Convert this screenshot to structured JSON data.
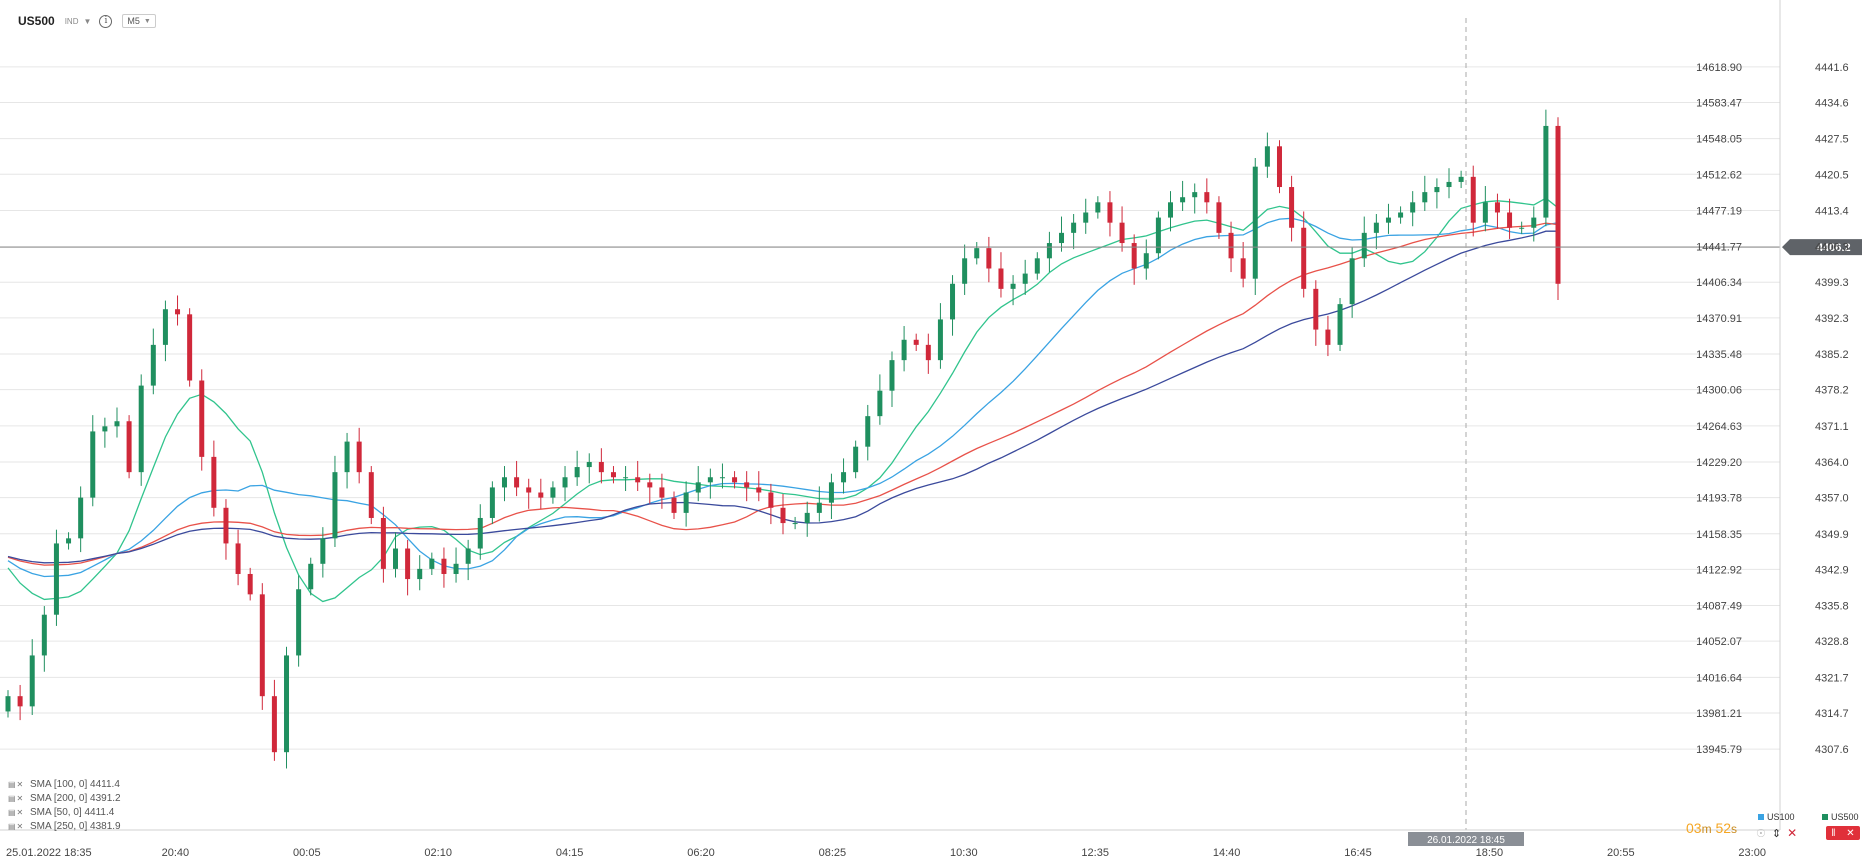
{
  "header": {
    "symbol": "US500",
    "type": "IND",
    "timeframe": "M5"
  },
  "legend": [
    {
      "label": "SMA [100, 0] 4411.4"
    },
    {
      "label": "SMA [200, 0] 4391.2"
    },
    {
      "label": "SMA [50, 0] 4411.4"
    },
    {
      "label": "SMA [250, 0] 4381.9"
    }
  ],
  "timer": {
    "minutes": "03",
    "m": "m",
    "seconds": "52",
    "s": "s"
  },
  "instruments": {
    "first": "US100",
    "second": "US500"
  },
  "crosshair": {
    "label": "26.01.2022 18:45"
  },
  "colors": {
    "bull": "#1f8f5f",
    "bear": "#d0283a",
    "sma50": "#31c48d",
    "sma100": "#3aa3e3",
    "sma200": "#e8524a",
    "sma250": "#3b4a9c",
    "grid": "#e6e6e6",
    "price_line": "#8a8a8a",
    "timer": "#f5a623"
  },
  "chart_data": {
    "type": "candlestick",
    "title": "US500",
    "timeframe": "M5",
    "x": {
      "tick_labels": [
        "25.01.2022  18:35",
        "20:40",
        "00:05",
        "02:10",
        "04:15",
        "06:20",
        "08:25",
        "10:30",
        "12:35",
        "14:40",
        "16:45",
        "18:50",
        "20:55",
        "23:00"
      ]
    },
    "y_right": {
      "ticks": [
        "4441.6",
        "4434.6",
        "4427.5",
        "4420.5",
        "4413.4",
        "4406.3",
        "4399.3",
        "4392.3",
        "4385.2",
        "4378.2",
        "4371.1",
        "4364.0",
        "4357.0",
        "4349.9",
        "4342.9",
        "4335.8",
        "4328.8",
        "4321.7",
        "4314.7",
        "4307.6"
      ],
      "range": [
        4303.5,
        4445.7
      ]
    },
    "y_left": {
      "ticks": [
        "14618.90",
        "14583.47",
        "14548.05",
        "14512.62",
        "14477.19",
        "14441.77",
        "14406.34",
        "14370.91",
        "14335.48",
        "14300.06",
        "14264.63",
        "14229.20",
        "14193.78",
        "14158.35",
        "14122.92",
        "14087.49",
        "14052.07",
        "14016.64",
        "13981.21",
        "13945.79"
      ]
    },
    "current_price": {
      "value": 4406.2,
      "label": "4406.2"
    },
    "close_path": [
      4318.0,
      4316.0,
      4326.0,
      4334.0,
      4348.0,
      4349.0,
      4357.0,
      4370.0,
      4371.0,
      4372.0,
      4362.0,
      4379.0,
      4387.0,
      4394.0,
      4393.0,
      4380.0,
      4365.0,
      4355.0,
      4348.0,
      4342.0,
      4338.0,
      4318.0,
      4307.0,
      4326.0,
      4339.0,
      4344.0,
      4349.0,
      4362.0,
      4368.0,
      4362.0,
      4353.0,
      4343.0,
      4347.0,
      4341.0,
      4343.0,
      4345.0,
      4342.0,
      4344.0,
      4347.0,
      4353.0,
      4359.0,
      4361.0,
      4359.0,
      4358.0,
      4357.0,
      4359.0,
      4361.0,
      4363.0,
      4364.0,
      4362.0,
      4361.0,
      4361.0,
      4360.0,
      4359.0,
      4357.0,
      4354.0,
      4358.0,
      4360.0,
      4361.0,
      4361.0,
      4360.0,
      4359.0,
      4358.0,
      4355.0,
      4352.0,
      4352.0,
      4354.0,
      4356.0,
      4360.0,
      4362.0,
      4367.0,
      4373.0,
      4378.0,
      4384.0,
      4388.0,
      4387.0,
      4384.0,
      4392.0,
      4399.0,
      4404.0,
      4406.0,
      4402.0,
      4398.0,
      4399.0,
      4401.0,
      4404.0,
      4407.0,
      4409.0,
      4411.0,
      4413.0,
      4415.0,
      4411.0,
      4407.0,
      4402.0,
      4405.0,
      4412.0,
      4415.0,
      4416.0,
      4417.0,
      4415.0,
      4409.0,
      4404.0,
      4400.0,
      4422.0,
      4426.0,
      4418.0,
      4410.0,
      4398.0,
      4390.0,
      4387.0,
      4395.0,
      4404.0,
      4409.0,
      4411.0,
      4412.0,
      4413.0,
      4415.0,
      4417.0,
      4418.0,
      4419.0,
      4420.0,
      4411.0,
      4415.0,
      4413.0,
      4410.0,
      4410.0,
      4412.0,
      4430.0,
      4399.0
    ]
  }
}
